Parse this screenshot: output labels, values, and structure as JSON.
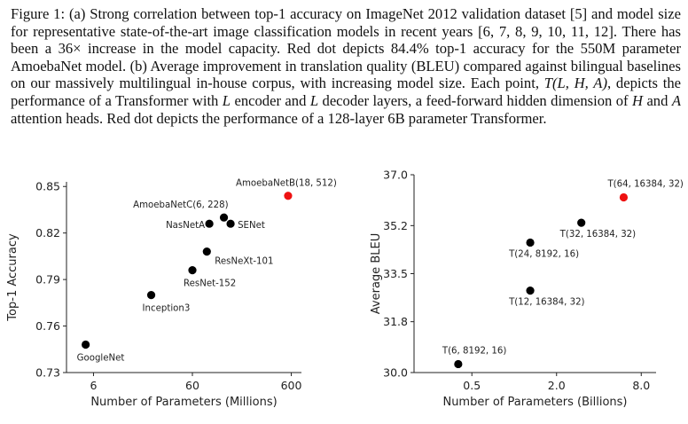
{
  "caption": {
    "label": "Figure 1:",
    "t1": " (a) Strong correlation between top-1 accuracy on ImageNet 2012 validation dataset [5] and model size for representative state-of-the-art image classification models in recent years [6, 7, 8, 9, 10, 11, 12]. There has been a 36× increase in the model capacity. Red dot depicts 84.4% top-1 accuracy for the 550M parameter AmoebaNet model. (b) Average improvement in translation quality (BLEU) compared against bilingual baselines on our massively multilingual in-house corpus, with increasing model size. Each point, ",
    "m1": "T(L, H, A)",
    "t2": ", depicts the performance of a Transformer with ",
    "m2": "L",
    "t3": " encoder and ",
    "m3": "L",
    "t4": " decoder layers, a feed-forward hidden dimension of ",
    "m4": "H",
    "t5": " and ",
    "m5": "A",
    "t6": " attention heads. Red dot depicts the performance of a 128-layer 6B parameter Transformer."
  },
  "chart_data": [
    {
      "type": "scatter",
      "title": "",
      "xlabel": "Number of Parameters (Millions)",
      "ylabel": "Top-1 Accuracy",
      "xscale": "log",
      "x_ticks": [
        6,
        60,
        600
      ],
      "y_ticks": [
        "0.73",
        "0.76",
        "0.79",
        "0.82",
        "0.85"
      ],
      "xlim": [
        3.2,
        760
      ],
      "ylim": [
        0.73,
        0.853
      ],
      "points": [
        {
          "name": "GoogleNet",
          "x": 5,
          "y": 0.748,
          "color": "#000000",
          "label_pos": "below"
        },
        {
          "name": "Inception3",
          "x": 23,
          "y": 0.78,
          "color": "#000000",
          "label_pos": "below"
        },
        {
          "name": "ResNet-152",
          "x": 60,
          "y": 0.796,
          "color": "#000000",
          "label_pos": "below"
        },
        {
          "name": "ResNeXt-101",
          "x": 84,
          "y": 0.808,
          "color": "#000000",
          "label_pos": "below-right"
        },
        {
          "name": "NasNetA",
          "x": 89,
          "y": 0.826,
          "color": "#000000",
          "label_pos": "left"
        },
        {
          "name": "SENet",
          "x": 146,
          "y": 0.826,
          "color": "#000000",
          "label_pos": "right"
        },
        {
          "name": "AmoebaNetC(6, 228)",
          "x": 125,
          "y": 0.83,
          "color": "#000000",
          "label_pos": "above-left"
        },
        {
          "name": "AmoebaNetB(18, 512)",
          "x": 557,
          "y": 0.844,
          "color": "#ee1111",
          "label_pos": "above"
        }
      ]
    },
    {
      "type": "scatter",
      "title": "",
      "xlabel": "Number of Parameters (Billions)",
      "ylabel": "Average BLEU",
      "xscale": "log",
      "x_ticks": [
        "0.5",
        "2.0",
        "8.0"
      ],
      "y_ticks": [
        "30.0",
        "31.8",
        "33.5",
        "35.2",
        "37.0"
      ],
      "xlim": [
        0.194,
        10.2
      ],
      "ylim": [
        30.0,
        37.0
      ],
      "points": [
        {
          "name": "T(6, 8192, 16)",
          "x": 0.4,
          "y": 30.3,
          "color": "#000000",
          "label_pos": "above"
        },
        {
          "name": "T(12, 16384, 32)",
          "x": 1.3,
          "y": 32.9,
          "color": "#000000",
          "label_pos": "below"
        },
        {
          "name": "T(24, 8192, 16)",
          "x": 1.3,
          "y": 34.6,
          "color": "#000000",
          "label_pos": "below"
        },
        {
          "name": "T(32, 16384, 32)",
          "x": 3.0,
          "y": 35.3,
          "color": "#000000",
          "label_pos": "below"
        },
        {
          "name": "T(64, 16384, 32)",
          "x": 6.0,
          "y": 36.2,
          "color": "#ee1111",
          "label_pos": "above"
        }
      ]
    }
  ]
}
